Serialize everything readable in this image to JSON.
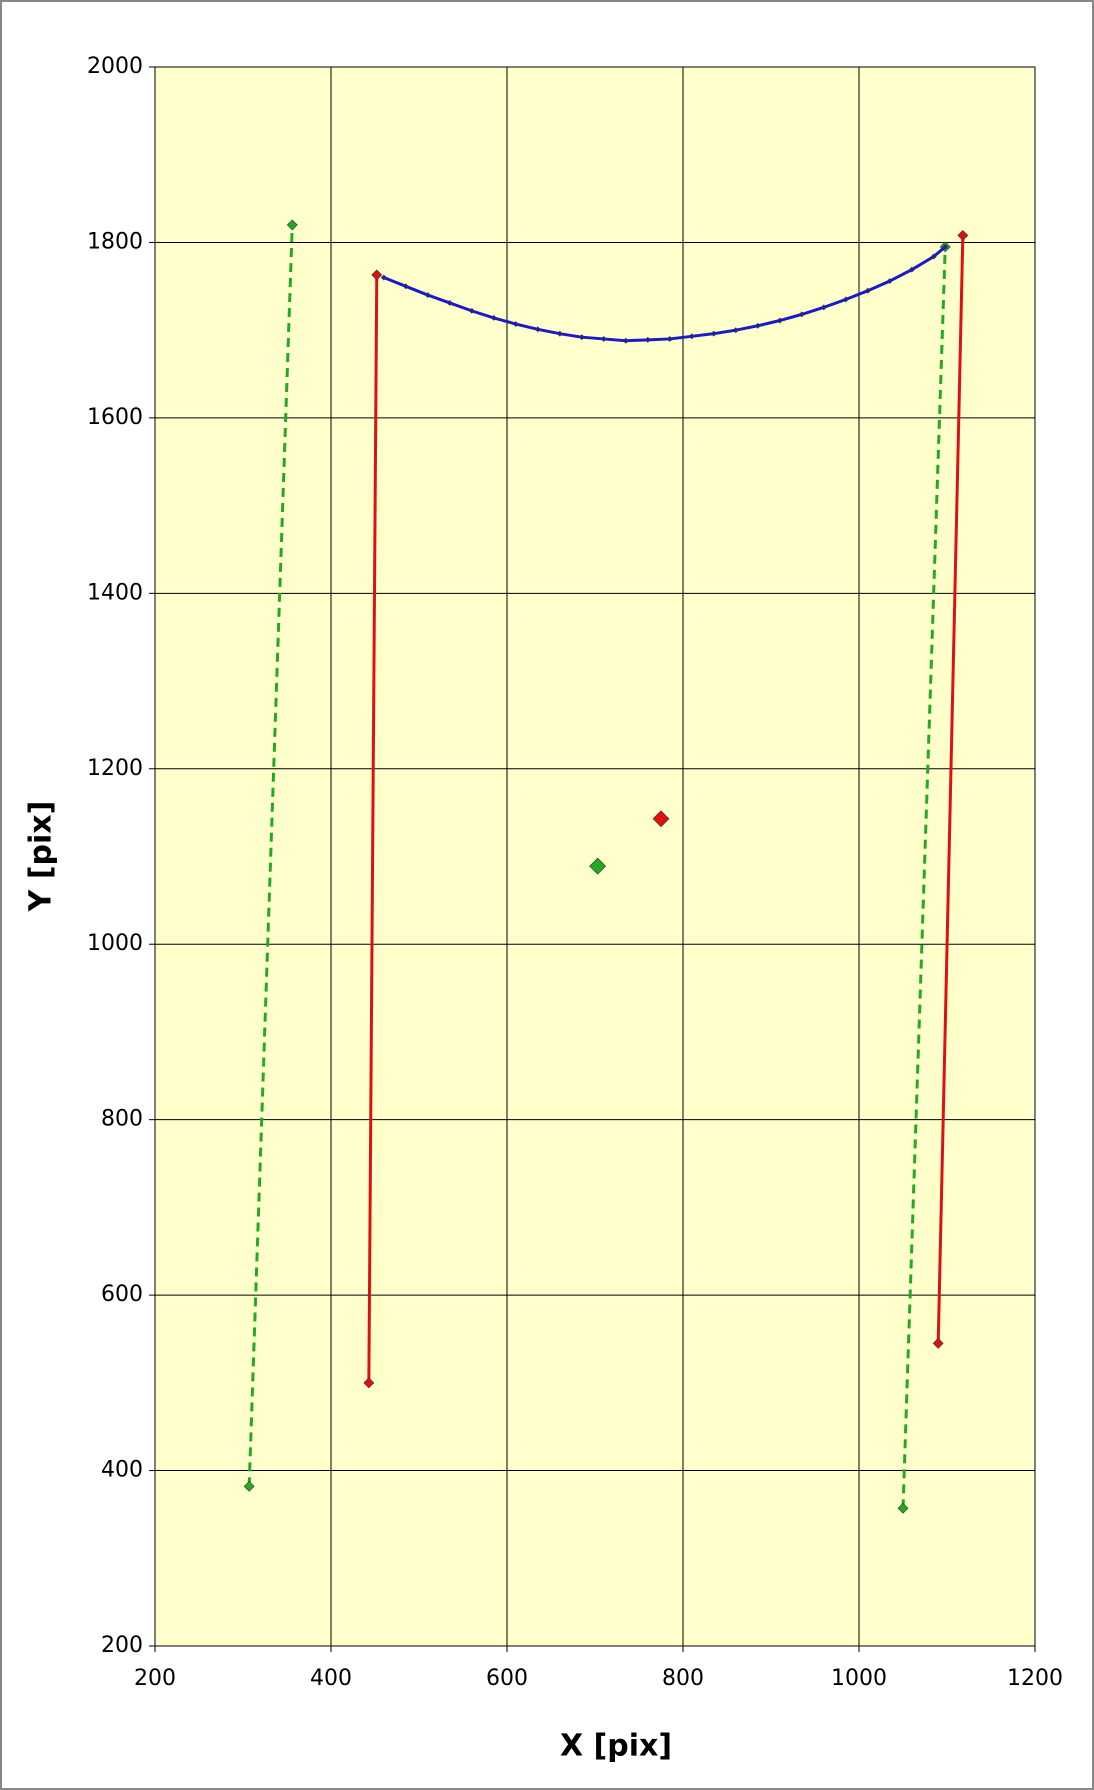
{
  "chart_data": {
    "type": "scatter",
    "x_label": "X  [pix]",
    "y_label": "Y  [pix]",
    "xlim": [
      200,
      1200
    ],
    "xticks": [
      200,
      400,
      600,
      800,
      1000,
      1200
    ],
    "ylim": [
      200,
      2000
    ],
    "yticks": [
      200,
      400,
      600,
      800,
      1000,
      1200,
      1400,
      1600,
      1800,
      2000
    ],
    "grid": true,
    "background": "#ffffcc",
    "series": [
      {
        "color": "#22aa22",
        "dashed": true,
        "line": true,
        "marker_size": 5,
        "x": [
          307,
          356
        ],
        "values": [
          382,
          1820
        ]
      },
      {
        "color": "#dd1111",
        "dashed": false,
        "line": true,
        "marker_size": 5,
        "x": [
          443,
          452
        ],
        "values": [
          500,
          1763
        ]
      },
      {
        "color": "#dd1111",
        "dashed": false,
        "line": true,
        "marker_size": 5,
        "x": [
          1090,
          1118
        ],
        "values": [
          545,
          1808
        ]
      },
      {
        "color": "#22aa22",
        "dashed": true,
        "line": true,
        "marker_size": 5,
        "x": [
          1050,
          1098
        ],
        "values": [
          357,
          1795
        ]
      },
      {
        "color": "#22aa22",
        "dashed": false,
        "line": false,
        "marker_size": 8,
        "x": [
          703
        ],
        "values": [
          1089
        ]
      },
      {
        "color": "#dd1111",
        "dashed": false,
        "line": false,
        "marker_size": 8,
        "x": [
          775
        ],
        "values": [
          1143
        ]
      },
      {
        "color": "#1a1acc",
        "dashed": false,
        "line": true,
        "marker_size": 2.5,
        "x": [
          460,
          485,
          510,
          535,
          560,
          585,
          610,
          635,
          660,
          685,
          710,
          735,
          760,
          785,
          810,
          835,
          860,
          885,
          910,
          935,
          960,
          985,
          1010,
          1035,
          1060,
          1085,
          1098
        ],
        "values": [
          1760,
          1750,
          1740,
          1731,
          1722,
          1714,
          1707,
          1701,
          1696,
          1692,
          1690,
          1688,
          1689,
          1690,
          1693,
          1696,
          1700,
          1705,
          1711,
          1718,
          1726,
          1735,
          1745,
          1756,
          1769,
          1784,
          1795
        ]
      }
    ]
  }
}
